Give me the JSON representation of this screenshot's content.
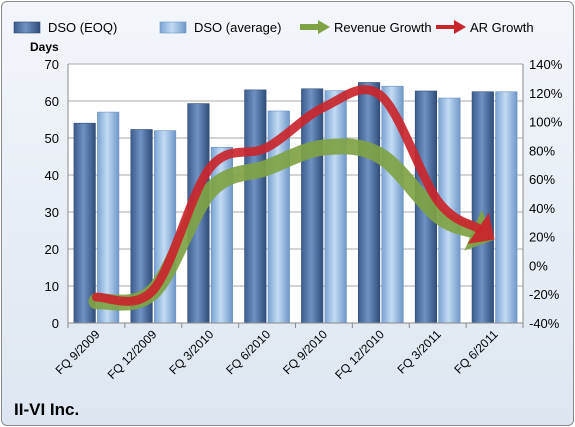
{
  "company": "II-VI Inc.",
  "chart_data": {
    "type": "bar",
    "title": "",
    "ylabel": "Days",
    "xlabel": "",
    "categories": [
      "FQ 9/2009",
      "FQ 12/2009",
      "FQ 3/2010",
      "FQ 6/2010",
      "FQ 9/2010",
      "FQ 12/2010",
      "FQ 3/2011",
      "FQ 6/2011"
    ],
    "series": [
      {
        "name": "DSO (EOQ)",
        "type": "bar",
        "axis": "left",
        "values": [
          54,
          52.3,
          59.3,
          63,
          63.3,
          65,
          62.7,
          62.5
        ],
        "color": "#4a6da0"
      },
      {
        "name": "DSO (average)",
        "type": "bar",
        "axis": "left",
        "values": [
          57,
          52,
          47.5,
          57.3,
          62.8,
          64,
          60.8,
          62.5
        ],
        "color": "#8fb4df"
      },
      {
        "name": "Revenue Growth",
        "type": "line-arrow",
        "axis": "right",
        "values": [
          -25,
          -18,
          52,
          68,
          82,
          76,
          35,
          18
        ],
        "color": "#7fa344"
      },
      {
        "name": "AR Growth",
        "type": "line-arrow",
        "axis": "right",
        "values": [
          -22,
          -17,
          68,
          82,
          110,
          118,
          45,
          18
        ],
        "color": "#c9262c"
      }
    ],
    "ylim": [
      0,
      70
    ],
    "yticks": [
      0,
      10,
      20,
      30,
      40,
      50,
      60,
      70
    ],
    "y2lim": [
      -40,
      140
    ],
    "y2ticks": [
      "-40%",
      "-20%",
      "0%",
      "20%",
      "40%",
      "60%",
      "80%",
      "100%",
      "120%",
      "140%"
    ],
    "grid": true,
    "legend": "top"
  }
}
